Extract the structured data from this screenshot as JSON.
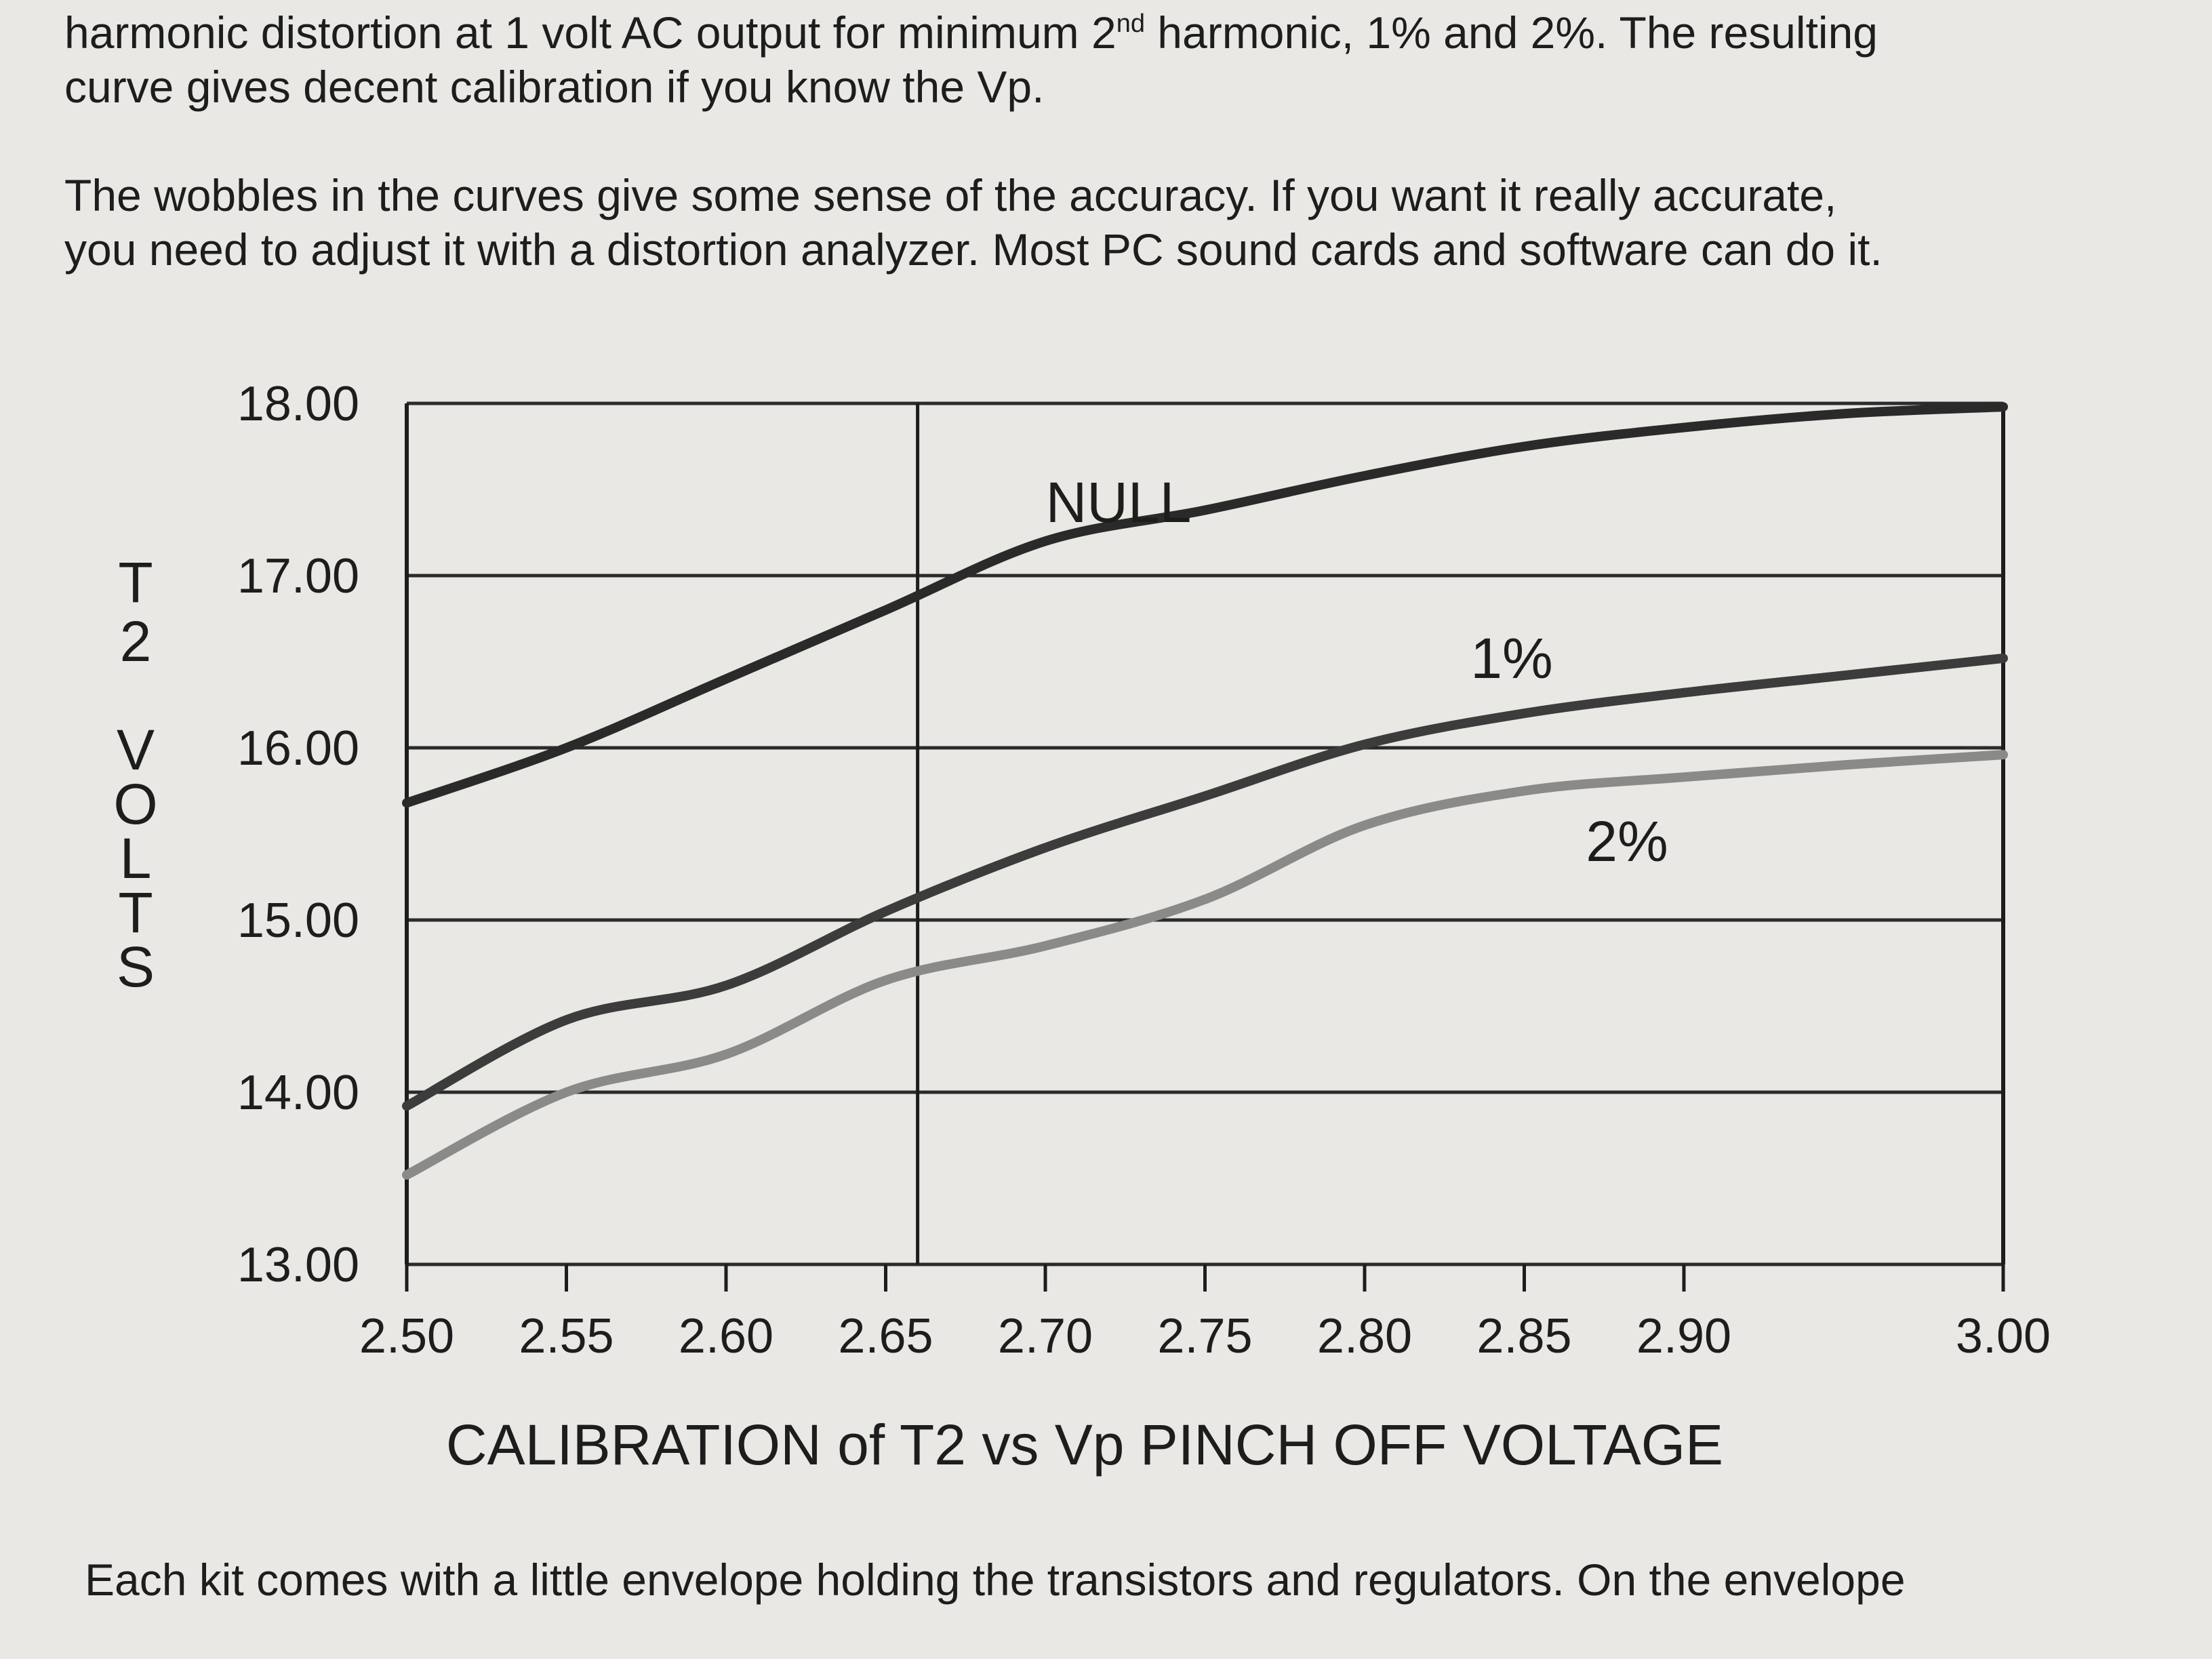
{
  "text": {
    "para1_line1_a": "harmonic distortion at 1 volt AC output for minimum 2",
    "para1_sup": "nd",
    "para1_line1_b": " harmonic, 1%  and 2%.  The resulting",
    "para1_line2": "curve gives decent calibration if you know the Vp.",
    "para2_line1": "The wobbles in the curves give some sense of the accuracy.  If you want it really accurate,",
    "para2_line2": "you need to adjust it with a distortion analyzer.  Most PC sound cards and software can do it.",
    "para3_line1": "Each kit comes with a little envelope holding the transistors and regulators.  On the envelope"
  },
  "chart_data": {
    "type": "line",
    "xlabel": "CALIBRATION of T2 vs Vp PINCH OFF VOLTAGE",
    "ylabel": "T2 VOLTS",
    "ylabel_letters": [
      "T",
      "2",
      "V",
      "O",
      "L",
      "T",
      "S"
    ],
    "xlim": [
      2.5,
      3.0
    ],
    "ylim": [
      13.0,
      18.0
    ],
    "x_ticks": [
      "2.50",
      "2.55",
      "2.60",
      "2.65",
      "2.70",
      "2.75",
      "2.80",
      "2.85",
      "2.90",
      "3.00"
    ],
    "x_tick_values": [
      2.5,
      2.55,
      2.6,
      2.65,
      2.7,
      2.75,
      2.8,
      2.85,
      2.9,
      3.0
    ],
    "y_ticks": [
      "18.00",
      "17.00",
      "16.00",
      "15.00",
      "14.00",
      "13.00"
    ],
    "y_tick_values": [
      18,
      17,
      16,
      15,
      14,
      13
    ],
    "grid": "horizontal",
    "reference_line_x": 2.66,
    "series": [
      {
        "name": "NULL",
        "color": "#2a2a2a",
        "x": [
          2.5,
          2.55,
          2.6,
          2.65,
          2.7,
          2.75,
          2.8,
          2.85,
          2.9,
          2.95,
          3.0
        ],
        "y": [
          15.68,
          16.0,
          16.4,
          16.8,
          17.2,
          17.38,
          17.58,
          17.75,
          17.86,
          17.94,
          17.98
        ]
      },
      {
        "name": "1%",
        "color": "#3c3c3c",
        "x": [
          2.5,
          2.55,
          2.6,
          2.65,
          2.7,
          2.75,
          2.8,
          2.85,
          2.9,
          2.95,
          3.0
        ],
        "y": [
          13.92,
          14.42,
          14.62,
          15.05,
          15.42,
          15.72,
          16.02,
          16.2,
          16.32,
          16.42,
          16.52
        ]
      },
      {
        "name": "2%",
        "color": "#8a8a88",
        "x": [
          2.5,
          2.55,
          2.6,
          2.65,
          2.7,
          2.75,
          2.8,
          2.85,
          2.9,
          2.95,
          3.0
        ],
        "y": [
          13.52,
          14.0,
          14.22,
          14.65,
          14.85,
          15.12,
          15.55,
          15.75,
          15.83,
          15.9,
          15.96
        ]
      }
    ]
  }
}
